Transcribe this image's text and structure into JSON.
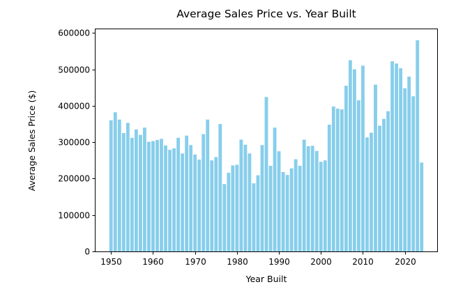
{
  "chart_data": {
    "type": "bar",
    "title": "Average Sales Price vs. Year Built",
    "xlabel": "Year Built",
    "ylabel": "Average Sales Price ($)",
    "xlim": [
      1946.3,
      2027.7
    ],
    "ylim": [
      0,
      610000
    ],
    "xticks": [
      1950,
      1960,
      1970,
      1980,
      1990,
      2000,
      2010,
      2020
    ],
    "yticks": [
      0,
      100000,
      200000,
      300000,
      400000,
      500000,
      600000
    ],
    "bar_color": "#87ceeb",
    "grid": false,
    "x": [
      1950,
      1951,
      1952,
      1953,
      1954,
      1955,
      1956,
      1957,
      1958,
      1959,
      1960,
      1961,
      1962,
      1963,
      1964,
      1965,
      1966,
      1967,
      1968,
      1969,
      1970,
      1971,
      1972,
      1973,
      1974,
      1975,
      1976,
      1977,
      1978,
      1979,
      1980,
      1981,
      1982,
      1983,
      1984,
      1985,
      1986,
      1987,
      1988,
      1989,
      1990,
      1991,
      1992,
      1993,
      1994,
      1995,
      1996,
      1997,
      1998,
      1999,
      2000,
      2001,
      2002,
      2003,
      2004,
      2005,
      2006,
      2007,
      2008,
      2009,
      2010,
      2011,
      2012,
      2013,
      2014,
      2015,
      2016,
      2017,
      2018,
      2019,
      2020,
      2021,
      2022,
      2023,
      2024
    ],
    "values": [
      360000,
      382000,
      362000,
      325000,
      353000,
      312000,
      335000,
      320000,
      340000,
      301000,
      303000,
      306000,
      309000,
      291000,
      279000,
      283000,
      312000,
      269000,
      318000,
      292000,
      266000,
      252000,
      322000,
      362000,
      250000,
      259000,
      350000,
      185000,
      216000,
      236000,
      238000,
      307000,
      293000,
      269000,
      187000,
      209000,
      292000,
      424000,
      235000,
      340000,
      275000,
      218000,
      210000,
      228000,
      253000,
      235000,
      307000,
      289000,
      290000,
      276000,
      246000,
      250000,
      348000,
      398000,
      392000,
      390000,
      455000,
      525000,
      500000,
      415000,
      510000,
      313000,
      326000,
      458000,
      345000,
      364000,
      385000,
      522000,
      516000,
      503000,
      448000,
      480000,
      426000,
      580000,
      244000
    ]
  }
}
